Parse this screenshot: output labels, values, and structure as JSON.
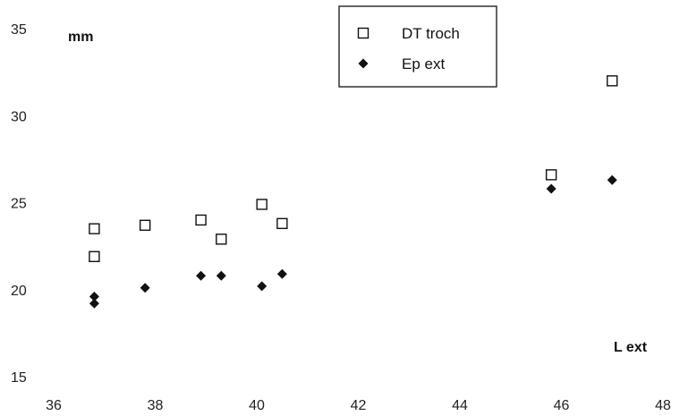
{
  "chart_data": {
    "type": "scatter",
    "title": "",
    "xlabel": "L ext",
    "ylabel": "mm",
    "xlim": [
      36,
      48
    ],
    "ylim": [
      15,
      35
    ],
    "x_ticks": [
      "36",
      "38",
      "40",
      "42",
      "44",
      "46",
      "48"
    ],
    "y_ticks": [
      "15",
      "20",
      "25",
      "30",
      "35"
    ],
    "grid": false,
    "legend_position": "top-center",
    "series": [
      {
        "name": "DT troch",
        "marker": "open-square",
        "color": "#111111",
        "points": [
          {
            "x": 36.8,
            "y": 23.5
          },
          {
            "x": 36.8,
            "y": 21.9
          },
          {
            "x": 37.8,
            "y": 23.7
          },
          {
            "x": 38.9,
            "y": 24.0
          },
          {
            "x": 39.3,
            "y": 22.9
          },
          {
            "x": 40.1,
            "y": 24.9
          },
          {
            "x": 40.5,
            "y": 23.8
          },
          {
            "x": 45.8,
            "y": 26.6
          },
          {
            "x": 47.0,
            "y": 32.0
          }
        ]
      },
      {
        "name": "Ep ext",
        "marker": "filled-diamond",
        "color": "#111111",
        "points": [
          {
            "x": 36.8,
            "y": 19.6
          },
          {
            "x": 36.8,
            "y": 19.2
          },
          {
            "x": 37.8,
            "y": 20.1
          },
          {
            "x": 38.9,
            "y": 20.8
          },
          {
            "x": 39.3,
            "y": 20.8
          },
          {
            "x": 40.1,
            "y": 20.2
          },
          {
            "x": 40.5,
            "y": 20.9
          },
          {
            "x": 45.8,
            "y": 25.8
          },
          {
            "x": 47.0,
            "y": 26.3
          }
        ]
      }
    ]
  }
}
